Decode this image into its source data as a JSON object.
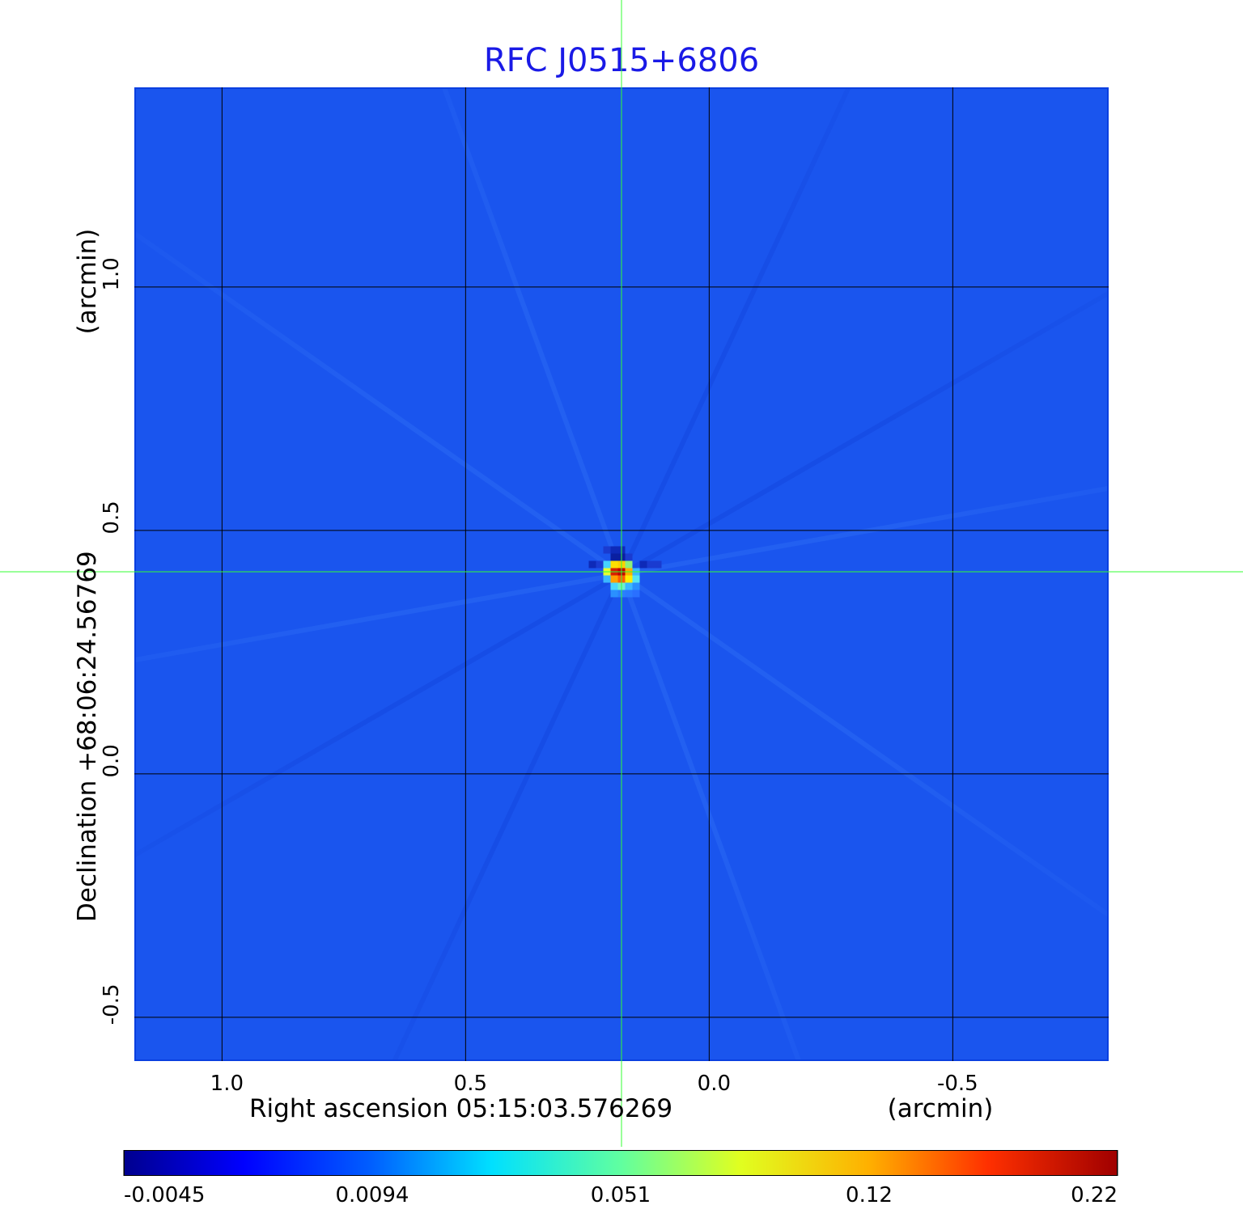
{
  "chart_data": {
    "type": "heatmap",
    "title": "RFC J0515+6806",
    "xlabel": "Right ascension  05:15:03.576269",
    "xlabel_unit": "(arcmin)",
    "ylabel": "Declination  +68:06:24.56769",
    "ylabel_unit": "(arcmin)",
    "x_ticks": [
      {
        "value": 1.0,
        "label": "1.0"
      },
      {
        "value": 0.5,
        "label": "0.5"
      },
      {
        "value": 0.0,
        "label": "0.0"
      },
      {
        "value": -0.5,
        "label": "-0.5"
      }
    ],
    "y_ticks": [
      {
        "value": 1.0,
        "label": "1.0"
      },
      {
        "value": 0.5,
        "label": "0.5"
      },
      {
        "value": 0.0,
        "label": "0.0"
      },
      {
        "value": -0.5,
        "label": "-0.5"
      }
    ],
    "xlim": [
      1.18,
      -0.82
    ],
    "ylim": [
      -0.59,
      1.41
    ],
    "x_reversed": true,
    "grid": true,
    "source_peak": {
      "x": 0.18,
      "y": 0.415
    },
    "crosshair": {
      "x": 0.18,
      "y": 0.415
    },
    "colorbar": {
      "ticks": [
        {
          "value": -0.0045,
          "label": "-0.0045"
        },
        {
          "value": 0.0094,
          "label": "0.0094"
        },
        {
          "value": 0.051,
          "label": "0.051"
        },
        {
          "value": 0.12,
          "label": "0.12"
        },
        {
          "value": 0.22,
          "label": "0.22"
        }
      ],
      "colormap": "jet"
    }
  },
  "colors": {
    "background": "#1a55ee",
    "grid": "#000000",
    "crosshair": "#33ff33",
    "title": "#1a1ae6"
  }
}
